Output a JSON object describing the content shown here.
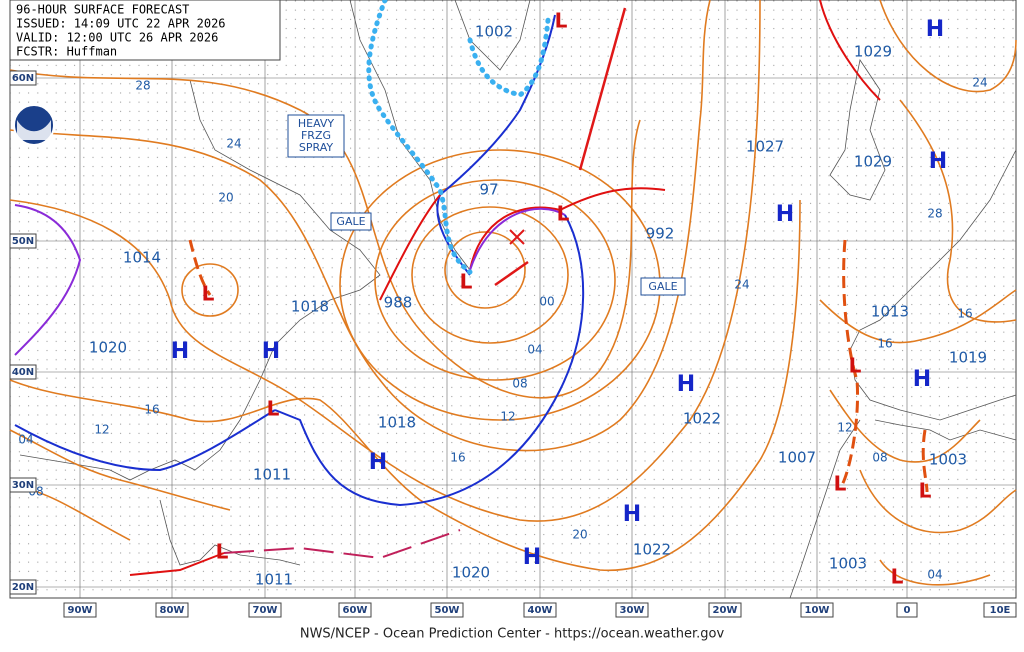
{
  "header": {
    "lines": [
      "96-HOUR SURFACE FORECAST",
      "ISSUED: 14:09 UTC 22 APR 2026",
      "VALID: 12:00 UTC 26 APR 2026",
      "FCSTR: Huffman"
    ]
  },
  "symbols": {
    "high": "H",
    "low": "L"
  },
  "latitude_labels": [
    "60N",
    "50N",
    "40N",
    "30N",
    "20N"
  ],
  "longitude_labels": [
    "90W",
    "80W",
    "70W",
    "60W",
    "50W",
    "40W",
    "30W",
    "20W",
    "10W",
    "0",
    "10E"
  ],
  "pressure_labels": [
    "1002",
    "1029",
    "1027",
    "1029",
    "97",
    "992",
    "1014",
    "1018",
    "988",
    "1020",
    "1013",
    "1019",
    "1018",
    "1022",
    "1011",
    "1007",
    "1003",
    "1022",
    "1020",
    "1003",
    "1011"
  ],
  "isobar_labels": [
    "28",
    "24",
    "20",
    "16",
    "12",
    "04",
    "08",
    "00",
    "04",
    "08",
    "12",
    "16",
    "20",
    "24",
    "28",
    "24",
    "16",
    "16",
    "12",
    "08",
    "04"
  ],
  "annotations": {
    "spray": [
      "HEAVY",
      "FRZG",
      "SPRAY"
    ],
    "gale": "GALE"
  },
  "footer": "NWS/NCEP - Ocean Prediction Center - https://ocean.weather.gov"
}
